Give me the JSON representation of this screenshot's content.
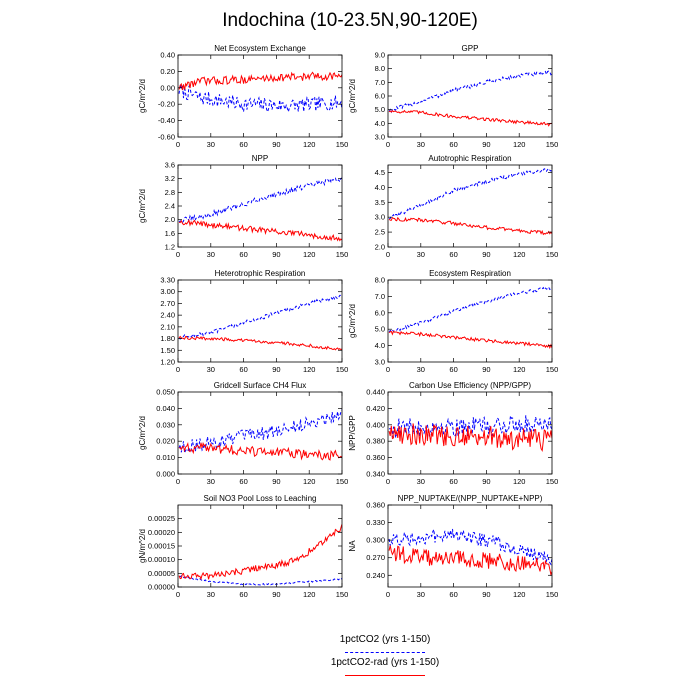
{
  "title": "Indochina (10-23.5N,90-120E)",
  "legend": [
    {
      "label": "1pctCO2 (yrs 1-150)",
      "color": "#0000ff",
      "dash": true
    },
    {
      "label": "1pctCO2-rad (yrs 1-150)",
      "color": "#ff0000",
      "dash": false
    }
  ],
  "chart_data": [
    {
      "type": "line",
      "title": "Net Ecosystem Exchange",
      "ylabel": "gC/m^2/d",
      "xlim": [
        0,
        150
      ],
      "xticks": [
        0,
        30,
        60,
        90,
        120,
        150
      ],
      "ylim": [
        -0.6,
        0.4
      ],
      "yticks": [
        -0.6,
        -0.4,
        -0.2,
        0.0,
        0.2,
        0.4
      ],
      "ytick_labels": [
        "-0.60",
        "-0.40",
        "-0.20",
        "0.00",
        "0.20",
        "0.40"
      ],
      "series": [
        {
          "name": "1pctCO2 (yrs 1-150)",
          "color": "#0000ff",
          "dash": true,
          "keyframes": [
            [
              0,
              -0.02
            ],
            [
              20,
              -0.12
            ],
            [
              60,
              -0.2
            ],
            [
              100,
              -0.22
            ],
            [
              150,
              -0.18
            ]
          ],
          "noise": 0.09
        },
        {
          "name": "1pctCO2-rad (yrs 1-150)",
          "color": "#ff0000",
          "dash": false,
          "keyframes": [
            [
              0,
              0.0
            ],
            [
              20,
              0.08
            ],
            [
              60,
              0.1
            ],
            [
              100,
              0.13
            ],
            [
              150,
              0.15
            ]
          ],
          "noise": 0.05
        }
      ]
    },
    {
      "type": "line",
      "title": "GPP",
      "ylabel": "gC/m^2/d",
      "xlim": [
        0,
        150
      ],
      "xticks": [
        0,
        30,
        60,
        90,
        120,
        150
      ],
      "ylim": [
        3.0,
        9.0
      ],
      "yticks": [
        3,
        4,
        5,
        6,
        7,
        8,
        9
      ],
      "ytick_labels": [
        "3.0",
        "4.0",
        "5.0",
        "6.0",
        "7.0",
        "8.0",
        "9.0"
      ],
      "series": [
        {
          "name": "1pctCO2 (yrs 1-150)",
          "color": "#0000ff",
          "dash": true,
          "keyframes": [
            [
              0,
              4.9
            ],
            [
              30,
              5.6
            ],
            [
              60,
              6.4
            ],
            [
              90,
              7.0
            ],
            [
              120,
              7.5
            ],
            [
              150,
              7.7
            ]
          ],
          "noise": 0.15
        },
        {
          "name": "1pctCO2-rad (yrs 1-150)",
          "color": "#ff0000",
          "dash": false,
          "keyframes": [
            [
              0,
              4.9
            ],
            [
              30,
              4.8
            ],
            [
              60,
              4.5
            ],
            [
              90,
              4.3
            ],
            [
              120,
              4.1
            ],
            [
              150,
              3.9
            ]
          ],
          "noise": 0.12
        }
      ]
    },
    {
      "type": "line",
      "title": "NPP",
      "ylabel": "gC/m^2/d",
      "xlim": [
        0,
        150
      ],
      "xticks": [
        0,
        30,
        60,
        90,
        120,
        150
      ],
      "ylim": [
        1.2,
        3.6
      ],
      "yticks": [
        1.2,
        1.6,
        2.0,
        2.4,
        2.8,
        3.2,
        3.6
      ],
      "ytick_labels": [
        "1.2",
        "1.6",
        "2.0",
        "2.4",
        "2.8",
        "3.2",
        "3.6"
      ],
      "series": [
        {
          "name": "1pctCO2 (yrs 1-150)",
          "color": "#0000ff",
          "dash": true,
          "keyframes": [
            [
              0,
              1.95
            ],
            [
              30,
              2.15
            ],
            [
              60,
              2.45
            ],
            [
              90,
              2.75
            ],
            [
              120,
              3.0
            ],
            [
              150,
              3.2
            ]
          ],
          "noise": 0.08
        },
        {
          "name": "1pctCO2-rad (yrs 1-150)",
          "color": "#ff0000",
          "dash": false,
          "keyframes": [
            [
              0,
              1.95
            ],
            [
              30,
              1.85
            ],
            [
              60,
              1.75
            ],
            [
              90,
              1.65
            ],
            [
              120,
              1.55
            ],
            [
              150,
              1.45
            ]
          ],
          "noise": 0.08
        }
      ]
    },
    {
      "type": "line",
      "title": "Autotrophic Respiration",
      "ylabel": "",
      "xlim": [
        0,
        150
      ],
      "xticks": [
        0,
        30,
        60,
        90,
        120,
        150
      ],
      "ylim": [
        2.0,
        4.75
      ],
      "yticks": [
        2.0,
        2.5,
        3.0,
        3.5,
        4.0,
        4.5
      ],
      "ytick_labels": [
        "2.0",
        "2.5",
        "3.0",
        "3.5",
        "4.0",
        "4.5"
      ],
      "series": [
        {
          "name": "1pctCO2 (yrs 1-150)",
          "color": "#0000ff",
          "dash": true,
          "keyframes": [
            [
              0,
              2.95
            ],
            [
              30,
              3.4
            ],
            [
              60,
              3.9
            ],
            [
              90,
              4.2
            ],
            [
              120,
              4.45
            ],
            [
              150,
              4.6
            ]
          ],
          "noise": 0.06
        },
        {
          "name": "1pctCO2-rad (yrs 1-150)",
          "color": "#ff0000",
          "dash": false,
          "keyframes": [
            [
              0,
              2.95
            ],
            [
              30,
              2.9
            ],
            [
              60,
              2.8
            ],
            [
              90,
              2.65
            ],
            [
              120,
              2.55
            ],
            [
              150,
              2.45
            ]
          ],
          "noise": 0.06
        }
      ]
    },
    {
      "type": "line",
      "title": "Heterotrophic Respiration",
      "ylabel": "",
      "xlim": [
        0,
        150
      ],
      "xticks": [
        0,
        30,
        60,
        90,
        120,
        150
      ],
      "ylim": [
        1.2,
        3.3
      ],
      "yticks": [
        1.2,
        1.5,
        1.8,
        2.1,
        2.4,
        2.7,
        3.0,
        3.3
      ],
      "ytick_labels": [
        "1.20",
        "1.50",
        "1.80",
        "2.10",
        "2.40",
        "2.70",
        "3.00",
        "3.30"
      ],
      "series": [
        {
          "name": "1pctCO2 (yrs 1-150)",
          "color": "#0000ff",
          "dash": true,
          "keyframes": [
            [
              0,
              1.82
            ],
            [
              30,
              1.95
            ],
            [
              60,
              2.2
            ],
            [
              90,
              2.45
            ],
            [
              120,
              2.7
            ],
            [
              150,
              2.9
            ]
          ],
          "noise": 0.05
        },
        {
          "name": "1pctCO2-rad (yrs 1-150)",
          "color": "#ff0000",
          "dash": false,
          "keyframes": [
            [
              0,
              1.82
            ],
            [
              30,
              1.8
            ],
            [
              60,
              1.75
            ],
            [
              90,
              1.7
            ],
            [
              120,
              1.62
            ],
            [
              150,
              1.52
            ]
          ],
          "noise": 0.04
        }
      ]
    },
    {
      "type": "line",
      "title": "Ecosystem Respiration",
      "ylabel": "gC/m^2/d",
      "xlim": [
        0,
        150
      ],
      "xticks": [
        0,
        30,
        60,
        90,
        120,
        150
      ],
      "ylim": [
        3.0,
        8.0
      ],
      "yticks": [
        3,
        4,
        5,
        6,
        7,
        8
      ],
      "ytick_labels": [
        "3.0",
        "4.0",
        "5.0",
        "6.0",
        "7.0",
        "8.0"
      ],
      "series": [
        {
          "name": "1pctCO2 (yrs 1-150)",
          "color": "#0000ff",
          "dash": true,
          "keyframes": [
            [
              0,
              4.8
            ],
            [
              30,
              5.4
            ],
            [
              60,
              6.1
            ],
            [
              90,
              6.7
            ],
            [
              120,
              7.2
            ],
            [
              150,
              7.55
            ]
          ],
          "noise": 0.1
        },
        {
          "name": "1pctCO2-rad (yrs 1-150)",
          "color": "#ff0000",
          "dash": false,
          "keyframes": [
            [
              0,
              4.8
            ],
            [
              30,
              4.7
            ],
            [
              60,
              4.5
            ],
            [
              90,
              4.3
            ],
            [
              120,
              4.15
            ],
            [
              150,
              3.95
            ]
          ],
          "noise": 0.1
        }
      ]
    },
    {
      "type": "line",
      "title": "Gridcell Surface CH4 Flux",
      "ylabel": "gC/m^2/d",
      "xlim": [
        0,
        150
      ],
      "xticks": [
        0,
        30,
        60,
        90,
        120,
        150
      ],
      "ylim": [
        0.0,
        0.05
      ],
      "yticks": [
        0.0,
        0.01,
        0.02,
        0.03,
        0.04,
        0.05
      ],
      "ytick_labels": [
        "0.000",
        "0.010",
        "0.020",
        "0.030",
        "0.040",
        "0.050"
      ],
      "series": [
        {
          "name": "1pctCO2 (yrs 1-150)",
          "color": "#0000ff",
          "dash": true,
          "keyframes": [
            [
              0,
              0.016
            ],
            [
              30,
              0.019
            ],
            [
              60,
              0.023
            ],
            [
              90,
              0.026
            ],
            [
              120,
              0.031
            ],
            [
              150,
              0.037
            ]
          ],
          "noise": 0.004
        },
        {
          "name": "1pctCO2-rad (yrs 1-150)",
          "color": "#ff0000",
          "dash": false,
          "keyframes": [
            [
              0,
              0.016
            ],
            [
              30,
              0.016
            ],
            [
              60,
              0.014
            ],
            [
              90,
              0.013
            ],
            [
              120,
              0.012
            ],
            [
              150,
              0.011
            ]
          ],
          "noise": 0.003
        }
      ]
    },
    {
      "type": "line",
      "title": "Carbon Use Efficiency (NPP/GPP)",
      "ylabel": "NPP/GPP",
      "xlim": [
        0,
        150
      ],
      "xticks": [
        0,
        30,
        60,
        90,
        120,
        150
      ],
      "ylim": [
        0.34,
        0.44
      ],
      "yticks": [
        0.34,
        0.36,
        0.38,
        0.4,
        0.42,
        0.44
      ],
      "ytick_labels": [
        "0.340",
        "0.360",
        "0.380",
        "0.400",
        "0.420",
        "0.440"
      ],
      "series": [
        {
          "name": "1pctCO2 (yrs 1-150)",
          "color": "#0000ff",
          "dash": true,
          "keyframes": [
            [
              0,
              0.395
            ],
            [
              30,
              0.397
            ],
            [
              60,
              0.398
            ],
            [
              90,
              0.398
            ],
            [
              120,
              0.4
            ],
            [
              150,
              0.405
            ]
          ],
          "noise": 0.012
        },
        {
          "name": "1pctCO2-rad (yrs 1-150)",
          "color": "#ff0000",
          "dash": false,
          "keyframes": [
            [
              0,
              0.392
            ],
            [
              30,
              0.388
            ],
            [
              60,
              0.387
            ],
            [
              90,
              0.385
            ],
            [
              120,
              0.383
            ],
            [
              150,
              0.38
            ]
          ],
          "noise": 0.014
        }
      ]
    },
    {
      "type": "line",
      "title": "Soil NO3 Pool Loss to Leaching",
      "ylabel": "gN/m^2/d",
      "xlim": [
        0,
        150
      ],
      "xticks": [
        0,
        30,
        60,
        90,
        120,
        150
      ],
      "ylim": [
        0.0,
        0.0003
      ],
      "yticks": [
        0.0,
        5e-05,
        0.0001,
        0.00015,
        0.0002,
        0.00025
      ],
      "ytick_labels": [
        "0.00000",
        "0.00005",
        "0.00010",
        "0.00015",
        "0.00020",
        "0.00025"
      ],
      "series": [
        {
          "name": "1pctCO2 (yrs 1-150)",
          "color": "#0000ff",
          "dash": true,
          "keyframes": [
            [
              0,
              4e-05
            ],
            [
              30,
              2e-05
            ],
            [
              60,
              1e-05
            ],
            [
              90,
              1e-05
            ],
            [
              120,
              2e-05
            ],
            [
              150,
              3e-05
            ]
          ],
          "noise": 3e-06
        },
        {
          "name": "1pctCO2-rad (yrs 1-150)",
          "color": "#ff0000",
          "dash": false,
          "keyframes": [
            [
              0,
              4e-05
            ],
            [
              30,
              4e-05
            ],
            [
              60,
              6e-05
            ],
            [
              90,
              8e-05
            ],
            [
              110,
              0.0001
            ],
            [
              130,
              0.00016
            ],
            [
              150,
              0.00022
            ]
          ],
          "noise": 1.2e-05
        }
      ]
    },
    {
      "type": "line",
      "title": "NPP_NUPTAKE/(NPP_NUPTAKE+NPP)",
      "ylabel": "NA",
      "xlim": [
        0,
        150
      ],
      "xticks": [
        0,
        30,
        60,
        90,
        120,
        150
      ],
      "ylim": [
        0.22,
        0.36
      ],
      "yticks": [
        0.24,
        0.27,
        0.3,
        0.33,
        0.36
      ],
      "ytick_labels": [
        "0.240",
        "0.270",
        "0.300",
        "0.330",
        "0.360"
      ],
      "series": [
        {
          "name": "1pctCO2 (yrs 1-150)",
          "color": "#0000ff",
          "dash": true,
          "keyframes": [
            [
              0,
              0.3
            ],
            [
              30,
              0.305
            ],
            [
              60,
              0.31
            ],
            [
              90,
              0.3
            ],
            [
              120,
              0.285
            ],
            [
              150,
              0.265
            ]
          ],
          "noise": 0.012
        },
        {
          "name": "1pctCO2-rad (yrs 1-150)",
          "color": "#ff0000",
          "dash": false,
          "keyframes": [
            [
              0,
              0.28
            ],
            [
              30,
              0.27
            ],
            [
              60,
              0.27
            ],
            [
              90,
              0.265
            ],
            [
              120,
              0.26
            ],
            [
              150,
              0.255
            ]
          ],
          "noise": 0.014
        }
      ]
    }
  ]
}
